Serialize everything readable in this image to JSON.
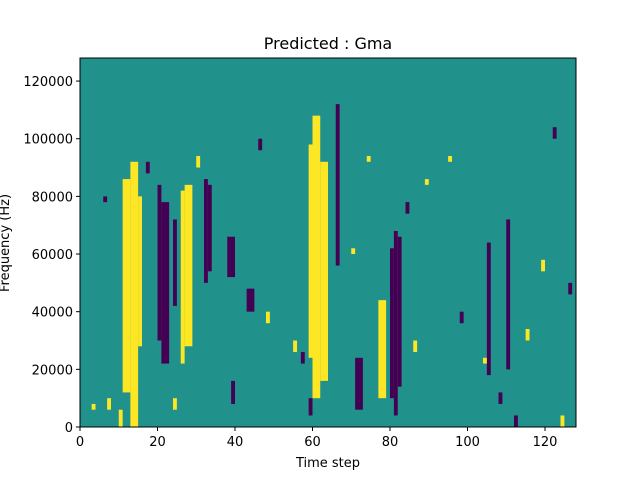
{
  "chart_data": {
    "type": "heatmap",
    "title": "Predicted : Gma",
    "xlabel": "Time step",
    "ylabel": "Frequency (Hz)",
    "xlim": [
      0,
      128
    ],
    "ylim": [
      0,
      128000
    ],
    "x_ticks": [
      0,
      20,
      40,
      60,
      80,
      100,
      120
    ],
    "y_ticks": [
      0,
      20000,
      40000,
      60000,
      80000,
      100000,
      120000
    ],
    "x_tick_labels": [
      "0",
      "20",
      "40",
      "60",
      "80",
      "100",
      "120"
    ],
    "y_tick_labels": [
      "0",
      "20000",
      "40000",
      "60000",
      "80000",
      "100000",
      "120000"
    ],
    "grid": false,
    "colormap": "viridis",
    "value_levels": [
      -1,
      0,
      1
    ],
    "level_colors": [
      "#440154",
      "#21918c",
      "#fde725"
    ],
    "background_value": 0,
    "freq_bin_hz": 2000,
    "cells": [
      {
        "t": [
          11,
          13
        ],
        "f": [
          12000,
          86000
        ],
        "v": 1
      },
      {
        "t": [
          13,
          15
        ],
        "f": [
          0,
          92000
        ],
        "v": 1
      },
      {
        "t": [
          15,
          16
        ],
        "f": [
          28000,
          80000
        ],
        "v": 1
      },
      {
        "t": [
          26,
          27
        ],
        "f": [
          22000,
          82000
        ],
        "v": 1
      },
      {
        "t": [
          27,
          29
        ],
        "f": [
          28000,
          84000
        ],
        "v": 1
      },
      {
        "t": [
          59,
          60
        ],
        "f": [
          24000,
          98000
        ],
        "v": 1
      },
      {
        "t": [
          60,
          62
        ],
        "f": [
          10000,
          108000
        ],
        "v": 1
      },
      {
        "t": [
          62,
          64
        ],
        "f": [
          16000,
          92000
        ],
        "v": 1
      },
      {
        "t": [
          77,
          79
        ],
        "f": [
          10000,
          44000
        ],
        "v": 1
      },
      {
        "t": [
          20,
          21
        ],
        "f": [
          30000,
          84000
        ],
        "v": -1
      },
      {
        "t": [
          21,
          23
        ],
        "f": [
          22000,
          78000
        ],
        "v": -1
      },
      {
        "t": [
          24,
          25
        ],
        "f": [
          42000,
          72000
        ],
        "v": -1
      },
      {
        "t": [
          32,
          33
        ],
        "f": [
          50000,
          86000
        ],
        "v": -1
      },
      {
        "t": [
          33,
          34
        ],
        "f": [
          54000,
          84000
        ],
        "v": -1
      },
      {
        "t": [
          66,
          67
        ],
        "f": [
          56000,
          112000
        ],
        "v": -1
      },
      {
        "t": [
          80,
          81
        ],
        "f": [
          10000,
          62000
        ],
        "v": -1
      },
      {
        "t": [
          81,
          82
        ],
        "f": [
          4000,
          68000
        ],
        "v": -1
      },
      {
        "t": [
          82,
          83
        ],
        "f": [
          14000,
          66000
        ],
        "v": -1
      },
      {
        "t": [
          71,
          73
        ],
        "f": [
          6000,
          24000
        ],
        "v": -1
      },
      {
        "t": [
          105,
          106
        ],
        "f": [
          18000,
          64000
        ],
        "v": -1
      },
      {
        "t": [
          110,
          111
        ],
        "f": [
          20000,
          72000
        ],
        "v": -1
      },
      {
        "t": [
          43,
          45
        ],
        "f": [
          40000,
          48000
        ],
        "v": -1
      },
      {
        "t": [
          38,
          40
        ],
        "f": [
          52000,
          66000
        ],
        "v": -1
      },
      {
        "t": [
          39,
          40
        ],
        "f": [
          8000,
          16000
        ],
        "v": -1
      },
      {
        "t": [
          59,
          60
        ],
        "f": [
          4000,
          10000
        ],
        "v": -1
      },
      {
        "t": [
          89,
          90
        ],
        "f": [
          84000,
          86000
        ],
        "v": 1
      },
      {
        "t": [
          3,
          4
        ],
        "f": [
          6000,
          8000
        ],
        "v": 1
      },
      {
        "t": [
          7,
          8
        ],
        "f": [
          6000,
          10000
        ],
        "v": 1
      },
      {
        "t": [
          10,
          11
        ],
        "f": [
          0,
          6000
        ],
        "v": 1
      },
      {
        "t": [
          24,
          25
        ],
        "f": [
          6000,
          10000
        ],
        "v": 1
      },
      {
        "t": [
          30,
          31
        ],
        "f": [
          90000,
          94000
        ],
        "v": 1
      },
      {
        "t": [
          48,
          49
        ],
        "f": [
          36000,
          40000
        ],
        "v": 1
      },
      {
        "t": [
          55,
          56
        ],
        "f": [
          26000,
          30000
        ],
        "v": 1
      },
      {
        "t": [
          70,
          71
        ],
        "f": [
          60000,
          62000
        ],
        "v": 1
      },
      {
        "t": [
          74,
          75
        ],
        "f": [
          92000,
          94000
        ],
        "v": 1
      },
      {
        "t": [
          86,
          87
        ],
        "f": [
          26000,
          30000
        ],
        "v": 1
      },
      {
        "t": [
          95,
          96
        ],
        "f": [
          92000,
          94000
        ],
        "v": 1
      },
      {
        "t": [
          104,
          105
        ],
        "f": [
          22000,
          24000
        ],
        "v": 1
      },
      {
        "t": [
          115,
          116
        ],
        "f": [
          30000,
          34000
        ],
        "v": 1
      },
      {
        "t": [
          119,
          120
        ],
        "f": [
          54000,
          58000
        ],
        "v": 1
      },
      {
        "t": [
          124,
          125
        ],
        "f": [
          0,
          4000
        ],
        "v": 1
      },
      {
        "t": [
          6,
          7
        ],
        "f": [
          78000,
          80000
        ],
        "v": -1
      },
      {
        "t": [
          17,
          18
        ],
        "f": [
          88000,
          92000
        ],
        "v": -1
      },
      {
        "t": [
          46,
          47
        ],
        "f": [
          96000,
          100000
        ],
        "v": -1
      },
      {
        "t": [
          57,
          58
        ],
        "f": [
          22000,
          26000
        ],
        "v": -1
      },
      {
        "t": [
          84,
          85
        ],
        "f": [
          74000,
          78000
        ],
        "v": -1
      },
      {
        "t": [
          98,
          99
        ],
        "f": [
          36000,
          40000
        ],
        "v": -1
      },
      {
        "t": [
          108,
          109
        ],
        "f": [
          8000,
          12000
        ],
        "v": -1
      },
      {
        "t": [
          112,
          113
        ],
        "f": [
          0,
          4000
        ],
        "v": -1
      },
      {
        "t": [
          122,
          123
        ],
        "f": [
          100000,
          104000
        ],
        "v": -1
      },
      {
        "t": [
          126,
          127
        ],
        "f": [
          46000,
          50000
        ],
        "v": -1
      }
    ]
  }
}
